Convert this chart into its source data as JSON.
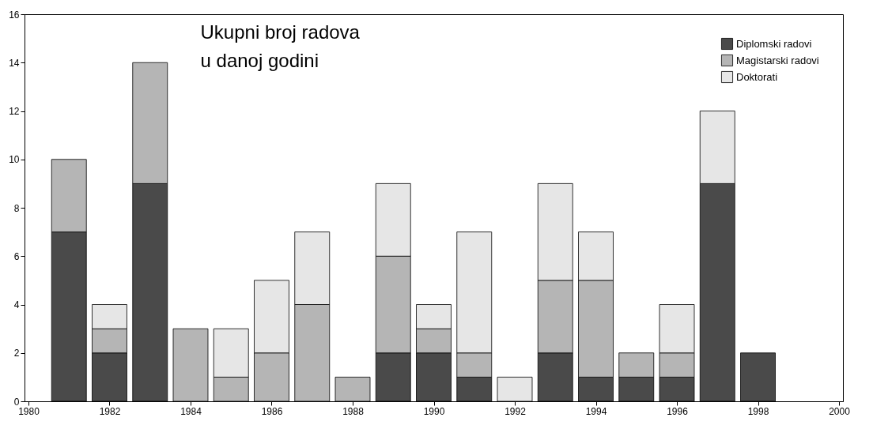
{
  "chart_data": {
    "type": "bar",
    "stacked": true,
    "x": [
      1981,
      1982,
      1983,
      1984,
      1985,
      1986,
      1987,
      1988,
      1989,
      1990,
      1991,
      1992,
      1993,
      1994,
      1995,
      1996,
      1997,
      1998
    ],
    "series": [
      {
        "name": "Diplomski radovi",
        "color": "#4a4a4a",
        "values": [
          7,
          2,
          9,
          0,
          0,
          0,
          0,
          0,
          2,
          2,
          1,
          0,
          2,
          1,
          1,
          1,
          9,
          2
        ]
      },
      {
        "name": "Magistarski radovi",
        "color": "#b5b5b5",
        "values": [
          3,
          1,
          5,
          3,
          1,
          2,
          4,
          1,
          4,
          1,
          1,
          0,
          3,
          4,
          1,
          1,
          0,
          0
        ]
      },
      {
        "name": "Doktorati",
        "color": "#e6e6e6",
        "values": [
          0,
          1,
          0,
          0,
          2,
          3,
          3,
          0,
          3,
          1,
          5,
          1,
          4,
          2,
          0,
          2,
          3,
          0
        ]
      }
    ],
    "xlim": [
      1980,
      2000
    ],
    "xticks": [
      1980,
      1982,
      1984,
      1986,
      1988,
      1990,
      1992,
      1994,
      1996,
      1998,
      2000
    ],
    "ylim": [
      0,
      16
    ],
    "yticks": [
      0,
      2,
      4,
      6,
      8,
      10,
      12,
      14,
      16
    ],
    "grid": false,
    "legend": "top right",
    "annotations": [
      "Ukupni broj radova\nu danoj godini"
    ]
  }
}
